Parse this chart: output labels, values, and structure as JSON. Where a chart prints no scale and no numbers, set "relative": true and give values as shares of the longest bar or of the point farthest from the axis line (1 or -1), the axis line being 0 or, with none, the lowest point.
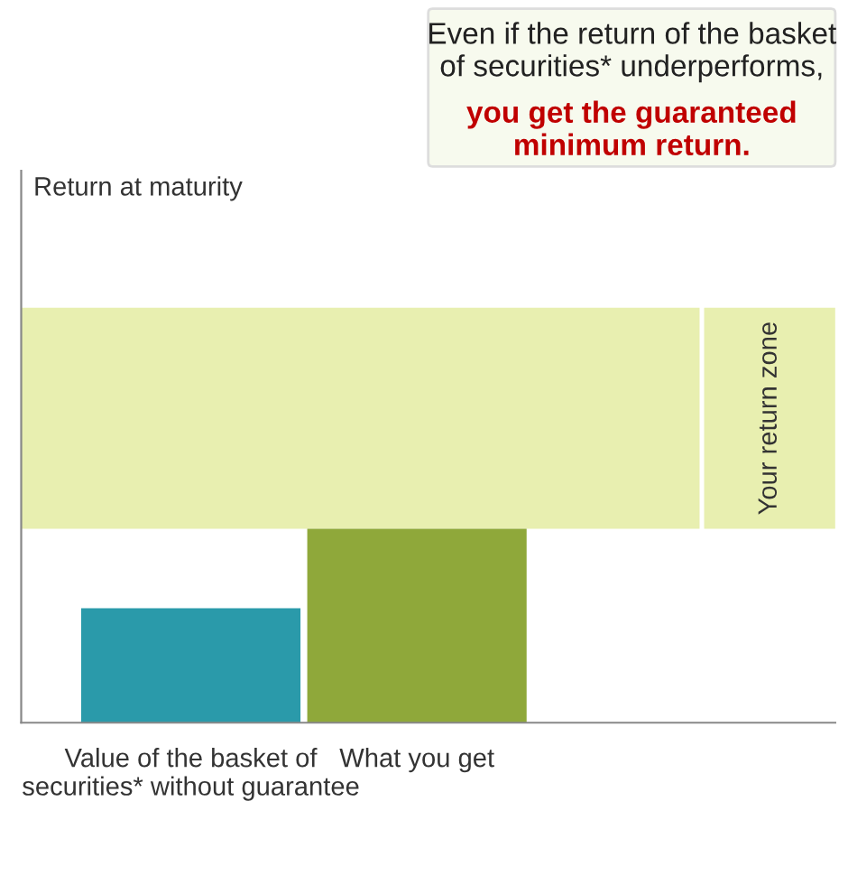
{
  "chart_data": {
    "type": "bar",
    "relative": true,
    "categories": [
      "Value of the basket of securities* without guarantee",
      "What you get"
    ],
    "values": [
      0.59,
      1
    ],
    "colors": [
      "#2a9aaa",
      "#8fa83a"
    ],
    "bands": [
      {
        "axis": "y",
        "from": 1,
        "to": 2.14,
        "label": "Your return zone",
        "color": "#e8efb0"
      }
    ],
    "annotations": [
      "Return at maturity",
      "Even if the return of the basket of securities* underperforms,",
      "you get the guaranteed minimum return."
    ],
    "grid": false,
    "legend": false
  }
}
